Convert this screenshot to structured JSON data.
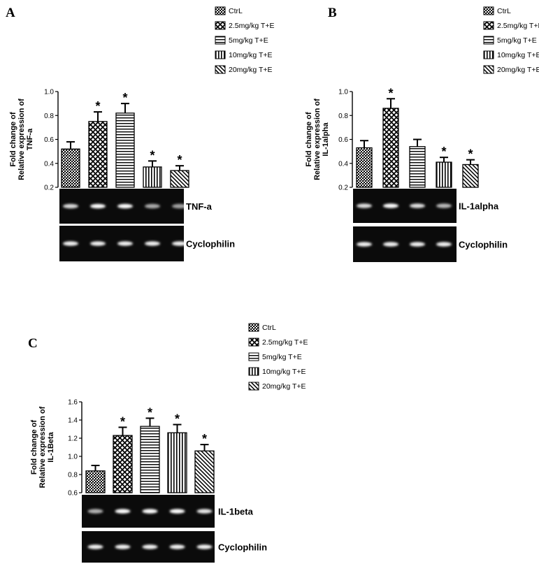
{
  "chart_data": [
    {
      "panel": "A",
      "type": "bar",
      "categories": [
        "CtrL",
        "2.5mg/kg T+E",
        "5mg/kg T+E",
        "10mg/kg T+E",
        "20mg/kg T+E"
      ],
      "values": [
        0.52,
        0.75,
        0.82,
        0.37,
        0.34
      ],
      "errors": [
        0.06,
        0.08,
        0.08,
        0.05,
        0.04
      ],
      "significant": [
        false,
        true,
        true,
        true,
        true
      ],
      "ylabel": "Fold change of\nRelative expression of\nTNF-a",
      "ylim": [
        0.2,
        1.0
      ],
      "yticks": [
        "0.2",
        "0.4",
        "0.6",
        "0.8",
        "1.0"
      ],
      "blot_labels": [
        "TNF-a",
        "Cyclophilin"
      ]
    },
    {
      "panel": "B",
      "type": "bar",
      "categories": [
        "CtrL",
        "2.5mg/kg T+E",
        "5mg/kg T+E",
        "10mg/kg T+E",
        "20mg/kg T+E"
      ],
      "values": [
        0.53,
        0.86,
        0.54,
        0.41,
        0.39
      ],
      "errors": [
        0.06,
        0.08,
        0.06,
        0.04,
        0.04
      ],
      "significant": [
        false,
        true,
        false,
        true,
        true
      ],
      "ylabel": "Fold change of\nRelative expression of\nIL-1alpha",
      "ylim": [
        0.2,
        1.0
      ],
      "yticks": [
        "0.2",
        "0.4",
        "0.6",
        "0.8",
        "1.0"
      ],
      "blot_labels": [
        "IL-1alpha",
        "Cyclophilin"
      ]
    },
    {
      "panel": "C",
      "type": "bar",
      "categories": [
        "CtrL",
        "2.5mg/kg T+E",
        "5mg/kg T+E",
        "10mg/kg T+E",
        "20mg/kg T+E"
      ],
      "values": [
        0.84,
        1.23,
        1.33,
        1.26,
        1.06
      ],
      "errors": [
        0.06,
        0.09,
        0.09,
        0.09,
        0.07
      ],
      "significant": [
        false,
        true,
        true,
        true,
        true
      ],
      "ylabel": "Fold change of\nRelative expression of\nIL-1Beta",
      "ylim": [
        0.6,
        1.6
      ],
      "yticks": [
        "0.6",
        "0.8",
        "1.0",
        "1.2",
        "1.4",
        "1.6"
      ],
      "blot_labels": [
        "IL-1beta",
        "Cyclophilin"
      ]
    }
  ],
  "legend": [
    "CtrL",
    "2.5mg/kg T+E",
    "5mg/kg T+E",
    "10mg/kg T+E",
    "20mg/kg T+E"
  ],
  "significance_marker": "*"
}
